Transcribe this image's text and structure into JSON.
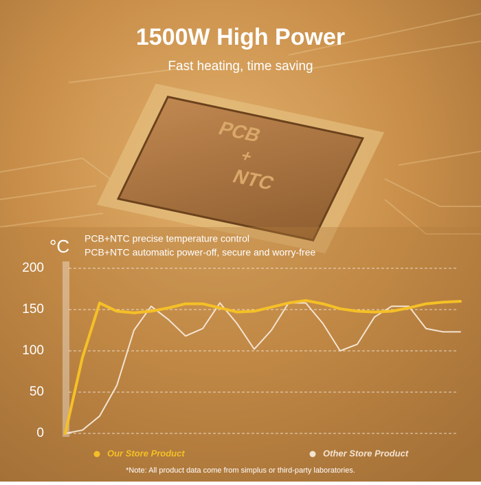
{
  "image_text": {
    "line1": "PCB",
    "line2": "+",
    "line3": "NTC"
  },
  "chart_data": {
    "type": "line",
    "title": "1500W High Power",
    "subtitle": "Fast heating, time saving",
    "y_label": "°C",
    "annotations": [
      "PCB+NTC precise  temperature control",
      "PCB+NTC automatic power-off, secure and worry-free"
    ],
    "note": "*Note:  All product data come from simplus or  third-party laboratories.",
    "ylim": [
      0,
      200
    ],
    "yticks": [
      0,
      50,
      100,
      150,
      200
    ],
    "grid": true,
    "series": [
      {
        "name": "Our Store Product",
        "color": "#f5c026",
        "values": [
          0,
          92,
          158,
          148,
          146,
          148,
          152,
          157,
          157,
          152,
          147,
          148,
          153,
          158,
          161,
          157,
          151,
          148,
          147,
          148,
          152,
          157,
          159,
          160
        ]
      },
      {
        "name": "Other Store Product",
        "color": "#f3e4d2",
        "values": [
          0,
          4,
          21,
          58,
          125,
          154,
          138,
          118,
          127,
          158,
          133,
          102,
          125,
          158,
          158,
          133,
          100,
          108,
          141,
          154,
          154,
          127,
          123,
          123
        ]
      }
    ]
  }
}
